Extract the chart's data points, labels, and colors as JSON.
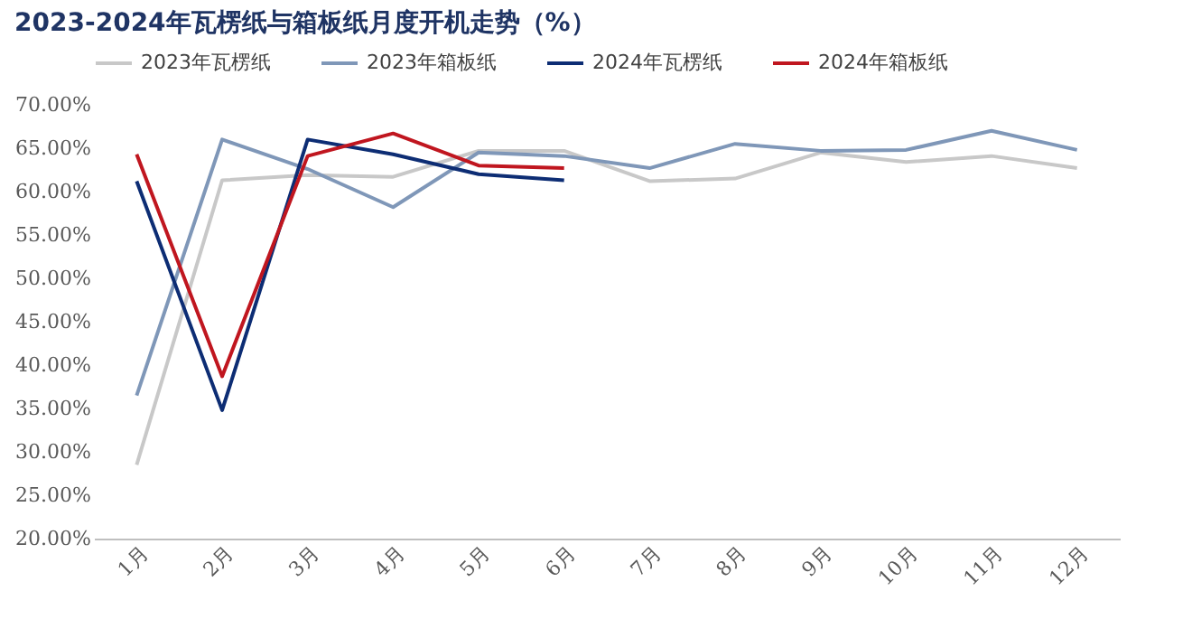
{
  "chart_data": {
    "type": "line",
    "title": "2023-2024年瓦楞纸与箱板纸月度开机走势（%）",
    "categories": [
      "1月",
      "2月",
      "3月",
      "4月",
      "5月",
      "6月",
      "7月",
      "8月",
      "9月",
      "10月",
      "11月",
      "12月"
    ],
    "series": [
      {
        "name": "2023年瓦楞纸",
        "color": "#c8c8c8",
        "values": [
          28.5,
          61.3,
          61.9,
          61.7,
          64.7,
          64.7,
          61.2,
          61.5,
          64.5,
          63.4,
          64.1,
          62.7
        ]
      },
      {
        "name": "2023年箱板纸",
        "color": "#7f97b8",
        "values": [
          36.5,
          66.0,
          62.6,
          58.2,
          64.5,
          64.1,
          62.7,
          65.5,
          64.7,
          64.8,
          67.0,
          64.8
        ]
      },
      {
        "name": "2024年瓦楞纸",
        "color": "#0d2d74",
        "values": [
          61.2,
          34.8,
          66.0,
          64.3,
          62.0,
          61.3,
          null,
          null,
          null,
          null,
          null,
          null
        ]
      },
      {
        "name": "2024年箱板纸",
        "color": "#c0161f",
        "values": [
          64.3,
          38.7,
          64.1,
          66.7,
          63.0,
          62.7,
          null,
          null,
          null,
          null,
          null,
          null
        ]
      }
    ],
    "ylim": [
      20,
      70
    ],
    "yticks": [
      {
        "value": 20,
        "label": "20.00%"
      },
      {
        "value": 25,
        "label": "25.00%"
      },
      {
        "value": 30,
        "label": "30.00%"
      },
      {
        "value": 35,
        "label": "35.00%"
      },
      {
        "value": 40,
        "label": "40.00%"
      },
      {
        "value": 45,
        "label": "45.00%"
      },
      {
        "value": 50,
        "label": "50.00%"
      },
      {
        "value": 55,
        "label": "55.00%"
      },
      {
        "value": 60,
        "label": "60.00%"
      },
      {
        "value": 65,
        "label": "65.00%"
      },
      {
        "value": 70,
        "label": "70.00%"
      }
    ],
    "legend": "top",
    "marker": "none",
    "line_style": "solid"
  }
}
